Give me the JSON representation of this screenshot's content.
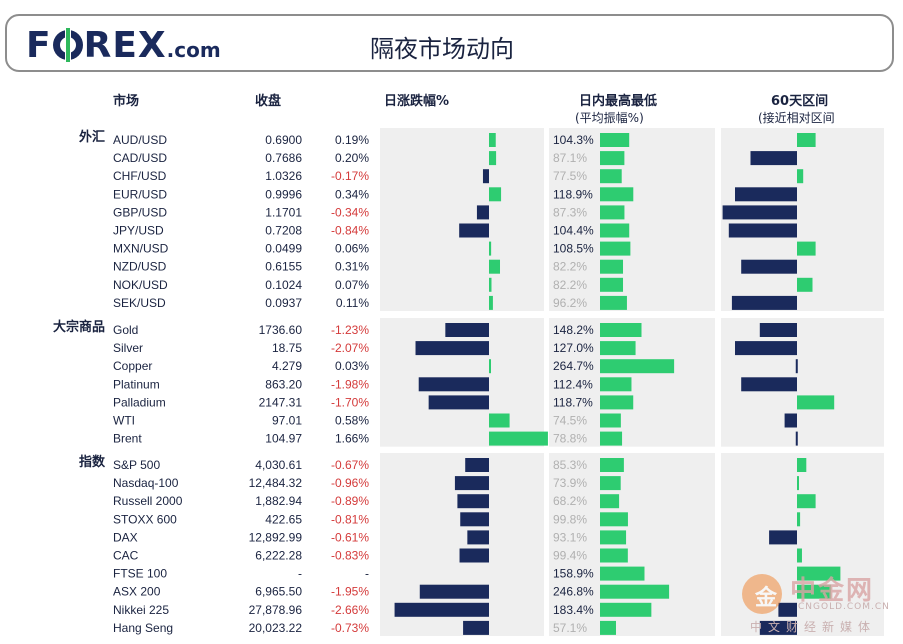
{
  "header": {
    "logo": "FOREX",
    "logo_suffix": ".com",
    "title": "隔夜市场动向"
  },
  "columns": {
    "market": "市场",
    "close": "收盘",
    "daily_change": "日涨跌幅%",
    "intraday": "日内最高最低",
    "intraday_sub": "(平均振幅%)",
    "range60": "60天区间",
    "range60_sub": "(接近相对区间"
  },
  "colors": {
    "positive": "#2ecc71",
    "negative": "#1a2a5c",
    "panel": "#efefef",
    "neg_text": "#d43a3a",
    "faded": "#b0b0b0"
  },
  "watermark": {
    "logo": "金",
    "name": "中金网",
    "url": "CNGOLD.COM.CN",
    "sub": "中文财经新媒体"
  },
  "chart_data": {
    "type": "table",
    "groups": [
      {
        "name": "外汇",
        "rows": [
          {
            "asset": "AUD/USD",
            "close": "0.6900",
            "change": "0.19%",
            "chg": 0.19,
            "range_pct": "104.3%",
            "range": 104.3,
            "pos60": 0.3
          },
          {
            "asset": "CAD/USD",
            "close": "0.7686",
            "change": "0.20%",
            "chg": 0.2,
            "range_pct": "87.1%",
            "range": 87.1,
            "pos60": -0.75
          },
          {
            "asset": "CHF/USD",
            "close": "1.0326",
            "change": "-0.17%",
            "chg": -0.17,
            "range_pct": "77.5%",
            "range": 77.5,
            "pos60": 0.1
          },
          {
            "asset": "EUR/USD",
            "close": "0.9996",
            "change": "0.34%",
            "chg": 0.34,
            "range_pct": "118.9%",
            "range": 118.9,
            "pos60": -1.0
          },
          {
            "asset": "GBP/USD",
            "close": "1.1701",
            "change": "-0.34%",
            "chg": -0.34,
            "range_pct": "87.3%",
            "range": 87.3,
            "pos60": -1.2
          },
          {
            "asset": "JPY/USD",
            "close": "0.7208",
            "change": "-0.84%",
            "chg": -0.84,
            "range_pct": "104.4%",
            "range": 104.4,
            "pos60": -1.1
          },
          {
            "asset": "MXN/USD",
            "close": "0.0499",
            "change": "0.06%",
            "chg": 0.06,
            "range_pct": "108.5%",
            "range": 108.5,
            "pos60": 0.3
          },
          {
            "asset": "NZD/USD",
            "close": "0.6155",
            "change": "0.31%",
            "chg": 0.31,
            "range_pct": "82.2%",
            "range": 82.2,
            "pos60": -0.9
          },
          {
            "asset": "NOK/USD",
            "close": "0.1024",
            "change": "0.07%",
            "chg": 0.07,
            "range_pct": "82.2%",
            "range": 82.2,
            "pos60": 0.25
          },
          {
            "asset": "SEK/USD",
            "close": "0.0937",
            "change": "0.11%",
            "chg": 0.11,
            "range_pct": "96.2%",
            "range": 96.2,
            "pos60": -1.05
          }
        ]
      },
      {
        "name": "大宗商品",
        "rows": [
          {
            "asset": "Gold",
            "close": "1736.60",
            "change": "-1.23%",
            "chg": -1.23,
            "range_pct": "148.2%",
            "range": 148.2,
            "pos60": -0.6
          },
          {
            "asset": "Silver",
            "close": "18.75",
            "change": "-2.07%",
            "chg": -2.07,
            "range_pct": "127.0%",
            "range": 127.0,
            "pos60": -1.0
          },
          {
            "asset": "Copper",
            "close": "4.279",
            "change": "0.03%",
            "chg": 0.03,
            "range_pct": "264.7%",
            "range": 264.7,
            "pos60": -0.02
          },
          {
            "asset": "Platinum",
            "close": "863.20",
            "change": "-1.98%",
            "chg": -1.98,
            "range_pct": "112.4%",
            "range": 112.4,
            "pos60": -0.9
          },
          {
            "asset": "Palladium",
            "close": "2147.31",
            "change": "-1.70%",
            "chg": -1.7,
            "range_pct": "118.7%",
            "range": 118.7,
            "pos60": 0.6
          },
          {
            "asset": "WTI",
            "close": "97.01",
            "change": "0.58%",
            "chg": 0.58,
            "range_pct": "74.5%",
            "range": 74.5,
            "pos60": -0.2
          },
          {
            "asset": "Brent",
            "close": "104.97",
            "change": "1.66%",
            "chg": 1.66,
            "range_pct": "78.8%",
            "range": 78.8,
            "pos60": -0.02
          }
        ]
      },
      {
        "name": "指数",
        "rows": [
          {
            "asset": "S&P 500",
            "close": "4,030.61",
            "change": "-0.67%",
            "chg": -0.67,
            "range_pct": "85.3%",
            "range": 85.3,
            "pos60": 0.15
          },
          {
            "asset": "Nasdaq-100",
            "close": "12,484.32",
            "change": "-0.96%",
            "chg": -0.96,
            "range_pct": "73.9%",
            "range": 73.9,
            "pos60": 0.02
          },
          {
            "asset": "Russell 2000",
            "close": "1,882.94",
            "change": "-0.89%",
            "chg": -0.89,
            "range_pct": "68.2%",
            "range": 68.2,
            "pos60": 0.3
          },
          {
            "asset": "STOXX 600",
            "close": "422.65",
            "change": "-0.81%",
            "chg": -0.81,
            "range_pct": "99.8%",
            "range": 99.8,
            "pos60": 0.05
          },
          {
            "asset": "DAX",
            "close": "12,892.99",
            "change": "-0.61%",
            "chg": -0.61,
            "range_pct": "93.1%",
            "range": 93.1,
            "pos60": -0.45
          },
          {
            "asset": "CAC",
            "close": "6,222.28",
            "change": "-0.83%",
            "chg": -0.83,
            "range_pct": "99.4%",
            "range": 99.4,
            "pos60": 0.08
          },
          {
            "asset": "FTSE 100",
            "close": "-",
            "change": "-",
            "chg": 0,
            "range_pct": "158.9%",
            "range": 158.9,
            "pos60": 0.7
          },
          {
            "asset": "ASX 200",
            "close": "6,965.50",
            "change": "-1.95%",
            "chg": -1.95,
            "range_pct": "246.8%",
            "range": 246.8,
            "pos60": 0.55
          },
          {
            "asset": "Nikkei 225",
            "close": "27,878.96",
            "change": "-2.66%",
            "chg": -2.66,
            "range_pct": "183.4%",
            "range": 183.4,
            "pos60": -0.3
          },
          {
            "asset": "Hang Seng",
            "close": "20,023.22",
            "change": "-0.73%",
            "chg": -0.73,
            "range_pct": "57.1%",
            "range": 57.1,
            "pos60": -0.6
          }
        ]
      }
    ]
  }
}
